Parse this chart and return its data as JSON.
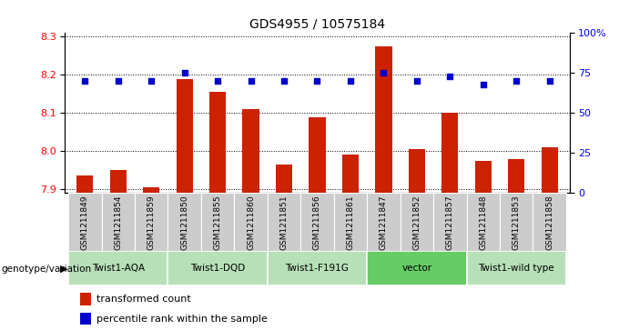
{
  "title": "GDS4955 / 10575184",
  "samples": [
    "GSM1211849",
    "GSM1211854",
    "GSM1211859",
    "GSM1211850",
    "GSM1211855",
    "GSM1211860",
    "GSM1211851",
    "GSM1211856",
    "GSM1211861",
    "GSM1211847",
    "GSM1211852",
    "GSM1211857",
    "GSM1211848",
    "GSM1211853",
    "GSM1211858"
  ],
  "transformed_count": [
    7.935,
    7.95,
    7.905,
    8.19,
    8.155,
    8.11,
    7.965,
    8.09,
    7.99,
    8.275,
    8.005,
    8.1,
    7.975,
    7.98,
    8.01
  ],
  "percentile_rank": [
    70,
    70,
    70,
    75,
    70,
    70,
    70,
    70,
    70,
    75,
    70,
    73,
    68,
    70,
    70
  ],
  "groups": [
    {
      "label": "Twist1-AQA",
      "count": 3,
      "color": "#b8e0b8"
    },
    {
      "label": "Twist1-DQD",
      "count": 3,
      "color": "#b8e0b8"
    },
    {
      "label": "Twist1-F191G",
      "count": 3,
      "color": "#b8e0b8"
    },
    {
      "label": "vector",
      "count": 3,
      "color": "#66cc66"
    },
    {
      "label": "Twist1-wild type",
      "count": 3,
      "color": "#b8e0b8"
    }
  ],
  "ylim_left": [
    7.89,
    8.31
  ],
  "ylim_right": [
    0,
    100
  ],
  "yticks_left": [
    7.9,
    8.0,
    8.1,
    8.2,
    8.3
  ],
  "yticks_right": [
    0,
    25,
    50,
    75,
    100
  ],
  "bar_color": "#cc2200",
  "dot_color": "#0000cc",
  "bar_bottom": 7.89,
  "sample_bg_color": "#cccccc",
  "legend_items": [
    {
      "label": "transformed count",
      "color": "#cc2200"
    },
    {
      "label": "percentile rank within the sample",
      "color": "#0000cc"
    }
  ],
  "genotype_label": "genotype/variation",
  "right_tick_labels": [
    "0",
    "25",
    "50",
    "75",
    "100%"
  ]
}
